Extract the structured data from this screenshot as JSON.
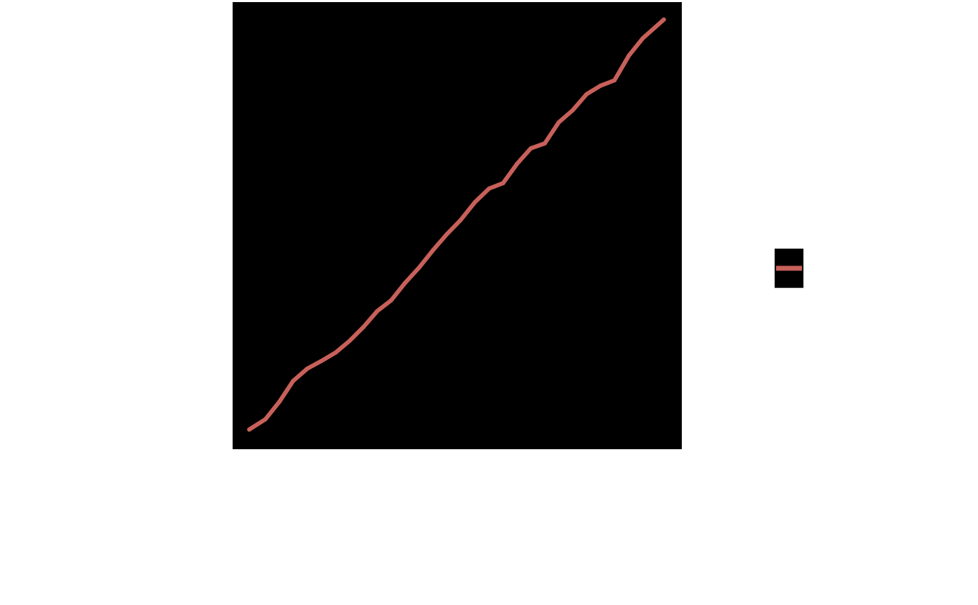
{
  "chart_data": {
    "type": "line",
    "title": "",
    "xlabel": "",
    "ylabel": "",
    "xlim": [
      0,
      100
    ],
    "ylim": [
      0,
      100
    ],
    "grid": false,
    "legend_placement": "right",
    "panel_background": "#000000",
    "series": [
      {
        "color": "#c8605a",
        "x": [
          3.7,
          7.3,
          10.4,
          13.5,
          16.6,
          19.7,
          22.9,
          26,
          29.1,
          32.2,
          35.3,
          38.4,
          41.5,
          44.6,
          47.7,
          50.8,
          53.9,
          57.1,
          60.2,
          63.3,
          66.4,
          69.5,
          72.6,
          75.7,
          78.8,
          81.9,
          85,
          88.2,
          91.3,
          96
        ],
        "y": [
          4.4,
          6.7,
          10.6,
          15.3,
          18,
          19.7,
          21.6,
          24.2,
          27.3,
          30.9,
          33.3,
          37.2,
          40.6,
          44.5,
          48.1,
          51.3,
          55.2,
          58.3,
          59.5,
          63.8,
          67.3,
          68.4,
          73.1,
          75.8,
          79.4,
          81.3,
          82.5,
          88,
          91.9,
          96.1
        ]
      }
    ]
  }
}
